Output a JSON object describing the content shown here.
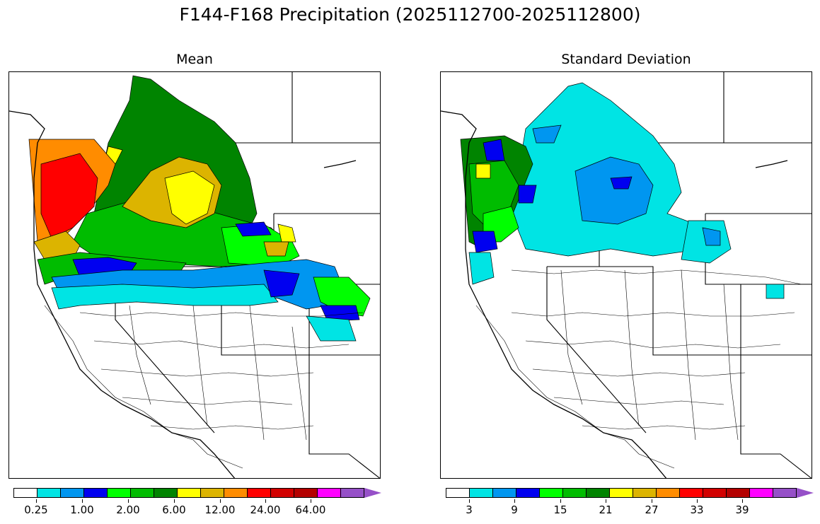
{
  "title": "F144-F168 Precipitation (2025112700-2025112800)",
  "panels": [
    {
      "title": "Mean",
      "colorbar": {
        "colors": [
          "#ffffff",
          "#00e4e4",
          "#0096f0",
          "#0000f0",
          "#00ff00",
          "#00bc00",
          "#008400",
          "#ffff00",
          "#dcb400",
          "#ff8c00",
          "#ff0000",
          "#d20000",
          "#b40000",
          "#ff00ff",
          "#9650c8"
        ],
        "tick_labels": [
          "0.25",
          "1.00",
          "2.00",
          "6.00",
          "12.00",
          "24.00",
          "64.00"
        ],
        "extend": "max"
      }
    },
    {
      "title": "Standard Deviation",
      "colorbar": {
        "colors": [
          "#ffffff",
          "#00e4e4",
          "#0096f0",
          "#0000f0",
          "#00ff00",
          "#00bc00",
          "#008400",
          "#ffff00",
          "#dcb400",
          "#ff8c00",
          "#ff0000",
          "#d20000",
          "#b40000",
          "#ff00ff",
          "#9650c8"
        ],
        "tick_labels": [
          "3",
          "9",
          "15",
          "21",
          "27",
          "33",
          "39"
        ],
        "extend": "max"
      }
    }
  ]
}
